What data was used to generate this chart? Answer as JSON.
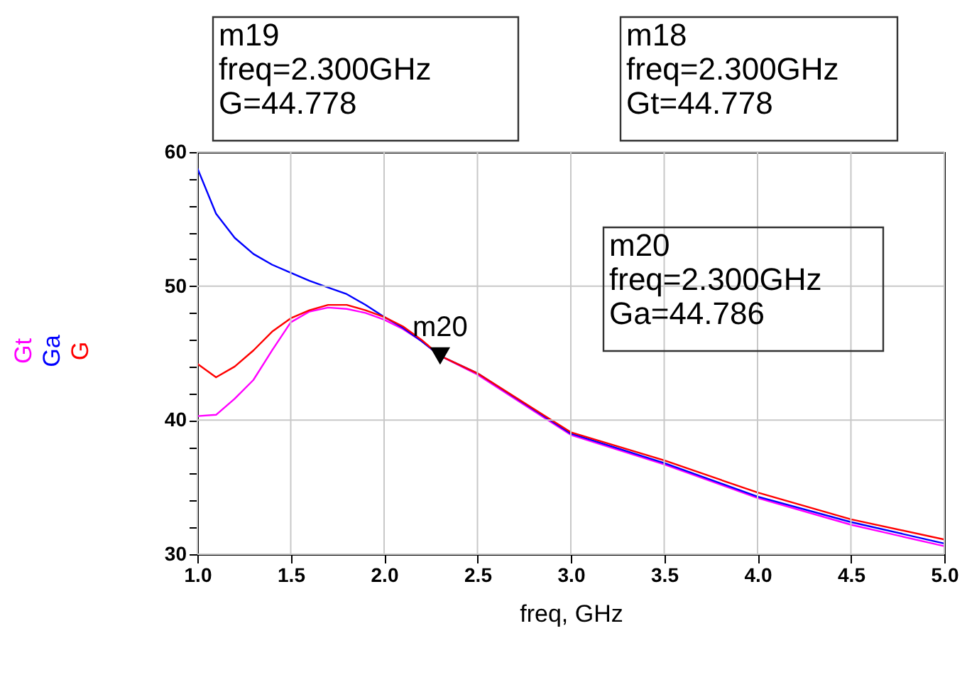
{
  "chart_data": {
    "type": "line",
    "xlabel": "freq, GHz",
    "x": [
      1.0,
      1.1,
      1.2,
      1.3,
      1.4,
      1.5,
      1.6,
      1.7,
      1.8,
      1.9,
      2.0,
      2.1,
      2.2,
      2.3,
      2.5,
      3.0,
      3.5,
      4.0,
      4.5,
      5.0
    ],
    "series": [
      {
        "name": "Gt",
        "color": "#ff00ff",
        "values": [
          40.3,
          40.4,
          41.6,
          43.0,
          45.2,
          47.3,
          48.1,
          48.4,
          48.3,
          48.0,
          47.5,
          46.8,
          45.9,
          44.8,
          43.4,
          38.9,
          36.7,
          34.2,
          32.2,
          30.6
        ]
      },
      {
        "name": "Ga",
        "color": "#0000ff",
        "values": [
          58.8,
          55.4,
          53.6,
          52.4,
          51.6,
          51.0,
          50.4,
          49.9,
          49.4,
          48.6,
          47.7,
          46.9,
          45.9,
          44.8,
          43.5,
          39.0,
          36.8,
          34.3,
          32.4,
          30.8
        ]
      },
      {
        "name": "G",
        "color": "#ff0000",
        "values": [
          44.2,
          43.2,
          44.0,
          45.2,
          46.6,
          47.6,
          48.2,
          48.6,
          48.6,
          48.2,
          47.7,
          47.0,
          46.0,
          44.8,
          43.5,
          39.1,
          37.0,
          34.6,
          32.6,
          31.1
        ]
      }
    ],
    "xlim": [
      1.0,
      5.0
    ],
    "xticks": [
      {
        "value": 1.0,
        "label": "1.0"
      },
      {
        "value": 1.5,
        "label": "1.5"
      },
      {
        "value": 2.0,
        "label": "2.0"
      },
      {
        "value": 2.5,
        "label": "2.5"
      },
      {
        "value": 3.0,
        "label": "3.0"
      },
      {
        "value": 3.5,
        "label": "3.5"
      },
      {
        "value": 4.0,
        "label": "4.0"
      },
      {
        "value": 4.5,
        "label": "4.5"
      },
      {
        "value": 5.0,
        "label": "5.0"
      }
    ],
    "ylim": [
      30,
      60
    ],
    "yticks": [
      30,
      {
        "value": 32,
        "label": null
      },
      {
        "value": 34,
        "label": null
      },
      {
        "value": 36,
        "label": null
      },
      {
        "value": 38,
        "label": null
      },
      40,
      {
        "value": 42,
        "label": null
      },
      {
        "value": 44,
        "label": null
      },
      {
        "value": 46,
        "label": null
      },
      {
        "value": 48,
        "label": null
      },
      50,
      {
        "value": 52,
        "label": null
      },
      {
        "value": 54,
        "label": null
      },
      {
        "value": 56,
        "label": null
      },
      {
        "value": 58,
        "label": null
      },
      60
    ],
    "grid": true,
    "legend": "left",
    "annotations": [
      "m19\nfreq=2.300GHz\nG=44.778",
      "m18\nfreq=2.300GHz\nGt=44.778",
      "m20\nfreq=2.300GHz\nGa=44.786",
      {
        "text": "m20",
        "x": 2.3,
        "y": 44.786
      }
    ]
  }
}
